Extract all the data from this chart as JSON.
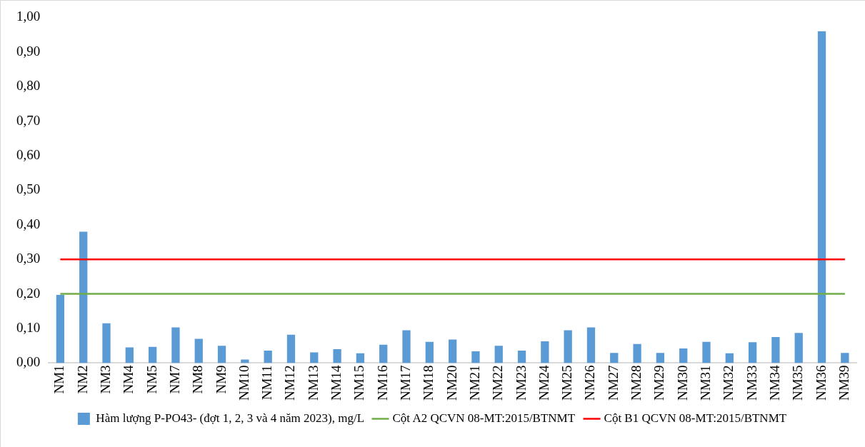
{
  "chart_data": {
    "type": "bar",
    "categories": [
      "NM1",
      "NM2",
      "NM3",
      "NM4",
      "NM5",
      "NM7",
      "NM8",
      "NM9",
      "NM10",
      "NM11",
      "NM12",
      "NM13",
      "NM14",
      "NM15",
      "NM16",
      "NM17",
      "NM18",
      "NM20",
      "NM21",
      "NM22",
      "NM23",
      "NM24",
      "NM25",
      "NM26",
      "NM27",
      "NM28",
      "NM29",
      "NM30",
      "NM31",
      "NM32",
      "NM33",
      "NM34",
      "NM35",
      "NM36",
      "NM39"
    ],
    "series": [
      {
        "name": "Hàm lượng P-PO43- (đợt 1, 2, 3 và 4 năm 2023), mg/L",
        "color": "#5b9bd5",
        "values": [
          0.197,
          0.38,
          0.115,
          0.045,
          0.047,
          0.103,
          0.07,
          0.05,
          0.01,
          0.036,
          0.082,
          0.031,
          0.04,
          0.028,
          0.053,
          0.095,
          0.061,
          0.068,
          0.034,
          0.05,
          0.036,
          0.063,
          0.095,
          0.103,
          0.029,
          0.055,
          0.029,
          0.042,
          0.061,
          0.028,
          0.06,
          0.075,
          0.087,
          0.96,
          0.029
        ]
      },
      {
        "type": "line",
        "name": "Cột A2 QCVN 08-MT:2015/BTNMT",
        "color": "#70ad47",
        "values": [
          0.2,
          0.2,
          0.2,
          0.2,
          0.2,
          0.2,
          0.2,
          0.2,
          0.2,
          0.2,
          0.2,
          0.2,
          0.2,
          0.2,
          0.2,
          0.2,
          0.2,
          0.2,
          0.2,
          0.2,
          0.2,
          0.2,
          0.2,
          0.2,
          0.2,
          0.2,
          0.2,
          0.2,
          0.2,
          0.2,
          0.2,
          0.2,
          0.2,
          0.2,
          0.2
        ]
      },
      {
        "type": "line",
        "name": "Cột B1 QCVN 08-MT:2015/BTNMT",
        "color": "#ff0000",
        "values": [
          0.3,
          0.3,
          0.3,
          0.3,
          0.3,
          0.3,
          0.3,
          0.3,
          0.3,
          0.3,
          0.3,
          0.3,
          0.3,
          0.3,
          0.3,
          0.3,
          0.3,
          0.3,
          0.3,
          0.3,
          0.3,
          0.3,
          0.3,
          0.3,
          0.3,
          0.3,
          0.3,
          0.3,
          0.3,
          0.3,
          0.3,
          0.3,
          0.3,
          0.3,
          0.3
        ]
      }
    ],
    "ylim": [
      0,
      1
    ],
    "yticks": [
      {
        "value": 0,
        "label": "0,00"
      },
      {
        "value": 0.1,
        "label": "0,10"
      },
      {
        "value": 0.2,
        "label": "0,20"
      },
      {
        "value": 0.3,
        "label": "0,30"
      },
      {
        "value": 0.4,
        "label": "0,40"
      },
      {
        "value": 0.5,
        "label": "0,50"
      },
      {
        "value": 0.6,
        "label": "0,60"
      },
      {
        "value": 0.7,
        "label": "0,70"
      },
      {
        "value": 0.8,
        "label": "0,80"
      },
      {
        "value": 0.9,
        "label": "0,90"
      },
      {
        "value": 1,
        "label": "1,00"
      }
    ],
    "grid": false,
    "legend": "bottom"
  }
}
